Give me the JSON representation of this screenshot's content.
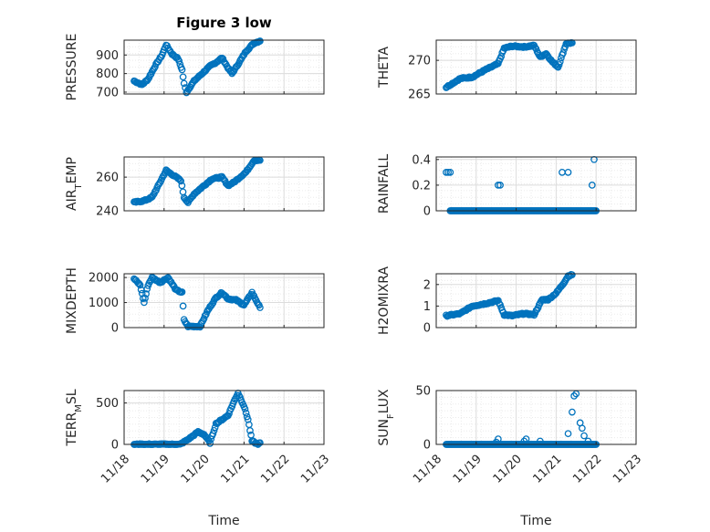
{
  "figure_title": "Figure 3 low",
  "colors": {
    "marker": "#0072BD",
    "grid": "#dcdcdc",
    "minor_grid": "#ebebeb",
    "axis": "#262626",
    "background": "#ffffff"
  },
  "chart_data": [
    {
      "type": "scatter",
      "panel": "top-left",
      "title": "Figure 3 low",
      "ylabel": "PRESSURE",
      "ylabel_sub": "",
      "ylim": [
        690,
        980
      ],
      "yticks": [
        700,
        800,
        900
      ],
      "xlim": [
        0,
        5
      ],
      "xtick_labels": [],
      "xlabel": "",
      "grid": true,
      "marker": "circle",
      "knots": [
        [
          0.25,
          760
        ],
        [
          0.45,
          740
        ],
        [
          0.6,
          770
        ],
        [
          0.8,
          850
        ],
        [
          0.95,
          900
        ],
        [
          1.05,
          955
        ],
        [
          1.2,
          905
        ],
        [
          1.35,
          880
        ],
        [
          1.45,
          820
        ],
        [
          1.5,
          745
        ],
        [
          1.56,
          700
        ],
        [
          1.75,
          760
        ],
        [
          1.95,
          800
        ],
        [
          2.15,
          840
        ],
        [
          2.3,
          860
        ],
        [
          2.45,
          885
        ],
        [
          2.6,
          830
        ],
        [
          2.7,
          800
        ],
        [
          2.85,
          850
        ],
        [
          3.05,
          920
        ],
        [
          3.25,
          965
        ],
        [
          3.4,
          975
        ]
      ]
    },
    {
      "type": "scatter",
      "panel": "top-right",
      "title": "",
      "ylabel": "THETA",
      "ylabel_sub": "",
      "ylim": [
        265,
        273
      ],
      "yticks": [
        265,
        270
      ],
      "xlim": [
        0,
        5
      ],
      "xtick_labels": [],
      "xlabel": "",
      "grid": true,
      "marker": "circle",
      "knots": [
        [
          0.25,
          266.0
        ],
        [
          0.6,
          267.3
        ],
        [
          0.9,
          267.5
        ],
        [
          1.2,
          268.5
        ],
        [
          1.55,
          269.5
        ],
        [
          1.7,
          271.8
        ],
        [
          1.9,
          272.1
        ],
        [
          2.2,
          272.0
        ],
        [
          2.45,
          272.2
        ],
        [
          2.6,
          270.5
        ],
        [
          2.75,
          271.0
        ],
        [
          2.9,
          269.8
        ],
        [
          3.05,
          269.0
        ],
        [
          3.25,
          272.5
        ],
        [
          3.4,
          272.6
        ]
      ]
    },
    {
      "type": "scatter",
      "panel": "second-left",
      "title": "",
      "ylabel": "AIR",
      "ylabel_sub": "T",
      "ylabel_suffix": "EMP",
      "ylim": [
        240,
        272
      ],
      "yticks": [
        240,
        260
      ],
      "xlim": [
        0,
        5
      ],
      "xtick_labels": [],
      "xlabel": "",
      "grid": true,
      "marker": "circle",
      "knots": [
        [
          0.25,
          245
        ],
        [
          0.5,
          246
        ],
        [
          0.7,
          248
        ],
        [
          0.9,
          257
        ],
        [
          1.05,
          264
        ],
        [
          1.3,
          260
        ],
        [
          1.42,
          258
        ],
        [
          1.5,
          248
        ],
        [
          1.6,
          245
        ],
        [
          1.75,
          250
        ],
        [
          2.0,
          255
        ],
        [
          2.2,
          259
        ],
        [
          2.45,
          260
        ],
        [
          2.6,
          255
        ],
        [
          2.75,
          257
        ],
        [
          3.05,
          263
        ],
        [
          3.25,
          270
        ],
        [
          3.4,
          270
        ]
      ]
    },
    {
      "type": "scatter",
      "panel": "second-right",
      "title": "",
      "ylabel": "RAINFALL",
      "ylabel_sub": "",
      "ylim": [
        0,
        0.42
      ],
      "yticks": [
        0,
        0.2,
        0.4
      ],
      "ytick_labels": [
        "0",
        "0.2",
        "0.4"
      ],
      "xlim": [
        0,
        5
      ],
      "xtick_labels": [],
      "xlabel": "",
      "grid": true,
      "marker": "circle",
      "points": [
        [
          0.25,
          0.3
        ],
        [
          0.3,
          0.3
        ],
        [
          0.35,
          0.3
        ],
        [
          1.55,
          0.2
        ],
        [
          1.6,
          0.2
        ],
        [
          3.15,
          0.3
        ],
        [
          3.3,
          0.3
        ],
        [
          3.95,
          0.4
        ],
        [
          3.9,
          0.2
        ]
      ],
      "baseline": {
        "from": 0.35,
        "to": 4.0,
        "value": 0
      }
    },
    {
      "type": "scatter",
      "panel": "third-left",
      "title": "",
      "ylabel": "MIXDEPTH",
      "ylabel_sub": "",
      "ylim": [
        0,
        2150
      ],
      "yticks": [
        0,
        1000,
        2000
      ],
      "xlim": [
        0,
        5
      ],
      "xtick_labels": [],
      "xlabel": "",
      "grid": true,
      "marker": "circle",
      "knots": [
        [
          0.25,
          1950
        ],
        [
          0.4,
          1700
        ],
        [
          0.5,
          1000
        ],
        [
          0.6,
          1700
        ],
        [
          0.7,
          2000
        ],
        [
          0.9,
          1800
        ],
        [
          1.1,
          2000
        ],
        [
          1.3,
          1500
        ],
        [
          1.45,
          1400
        ],
        [
          1.5,
          300
        ],
        [
          1.6,
          50
        ],
        [
          1.9,
          50
        ],
        [
          2.1,
          700
        ],
        [
          2.3,
          1200
        ],
        [
          2.45,
          1400
        ],
        [
          2.6,
          1150
        ],
        [
          2.8,
          1100
        ],
        [
          3.0,
          900
        ],
        [
          3.2,
          1400
        ],
        [
          3.4,
          800
        ]
      ]
    },
    {
      "type": "scatter",
      "panel": "third-right",
      "title": "",
      "ylabel": "H2OMIXRA",
      "ylabel_sub": "",
      "ylim": [
        0,
        2.5
      ],
      "yticks": [
        0,
        1,
        2
      ],
      "xlim": [
        0,
        5
      ],
      "xtick_labels": [],
      "xlabel": "",
      "grid": true,
      "marker": "circle",
      "knots": [
        [
          0.25,
          0.55
        ],
        [
          0.6,
          0.65
        ],
        [
          0.9,
          1.0
        ],
        [
          1.2,
          1.1
        ],
        [
          1.55,
          1.25
        ],
        [
          1.7,
          0.6
        ],
        [
          1.9,
          0.55
        ],
        [
          2.2,
          0.65
        ],
        [
          2.45,
          0.6
        ],
        [
          2.65,
          1.3
        ],
        [
          2.8,
          1.3
        ],
        [
          3.0,
          1.6
        ],
        [
          3.2,
          2.1
        ],
        [
          3.3,
          2.4
        ],
        [
          3.4,
          2.45
        ]
      ]
    },
    {
      "type": "scatter",
      "panel": "bottom-left",
      "title": "",
      "ylabel": "TERR",
      "ylabel_sub": "M",
      "ylabel_suffix": "SL",
      "ylim": [
        0,
        650
      ],
      "yticks": [
        0,
        500
      ],
      "xlim": [
        0,
        5
      ],
      "xtick_labels": [
        "11/18",
        "11/19",
        "11/20",
        "11/21",
        "11/22",
        "11/23"
      ],
      "xlabel": "Time",
      "grid": true,
      "marker": "circle",
      "knots": [
        [
          0.25,
          0
        ],
        [
          0.95,
          0
        ],
        [
          1.4,
          0
        ],
        [
          1.6,
          60
        ],
        [
          1.85,
          150
        ],
        [
          2.0,
          120
        ],
        [
          2.15,
          20
        ],
        [
          2.3,
          250
        ],
        [
          2.45,
          300
        ],
        [
          2.6,
          350
        ],
        [
          2.75,
          520
        ],
        [
          2.85,
          620
        ],
        [
          3.0,
          460
        ],
        [
          3.1,
          300
        ],
        [
          3.2,
          40
        ],
        [
          3.35,
          0
        ],
        [
          3.4,
          20
        ]
      ]
    },
    {
      "type": "scatter",
      "panel": "bottom-right",
      "title": "",
      "ylabel": "SUN",
      "ylabel_sub": "F",
      "ylabel_suffix": "LUX",
      "ylim": [
        0,
        50
      ],
      "yticks": [
        0,
        50
      ],
      "xlim": [
        0,
        5
      ],
      "xtick_labels": [
        "11/18",
        "11/19",
        "11/20",
        "11/21",
        "11/22",
        "11/23"
      ],
      "xlabel": "Time",
      "grid": true,
      "marker": "circle",
      "points": [
        [
          1.5,
          2
        ],
        [
          1.55,
          5
        ],
        [
          2.2,
          3
        ],
        [
          2.25,
          5
        ],
        [
          2.6,
          3
        ],
        [
          3.3,
          10
        ],
        [
          3.4,
          30
        ],
        [
          3.45,
          45
        ],
        [
          3.5,
          47
        ],
        [
          3.6,
          20
        ],
        [
          3.65,
          15
        ],
        [
          3.7,
          8
        ],
        [
          3.8,
          3
        ],
        [
          3.9,
          0
        ]
      ],
      "baseline": {
        "from": 0.25,
        "to": 4.0,
        "value": 0
      }
    }
  ]
}
